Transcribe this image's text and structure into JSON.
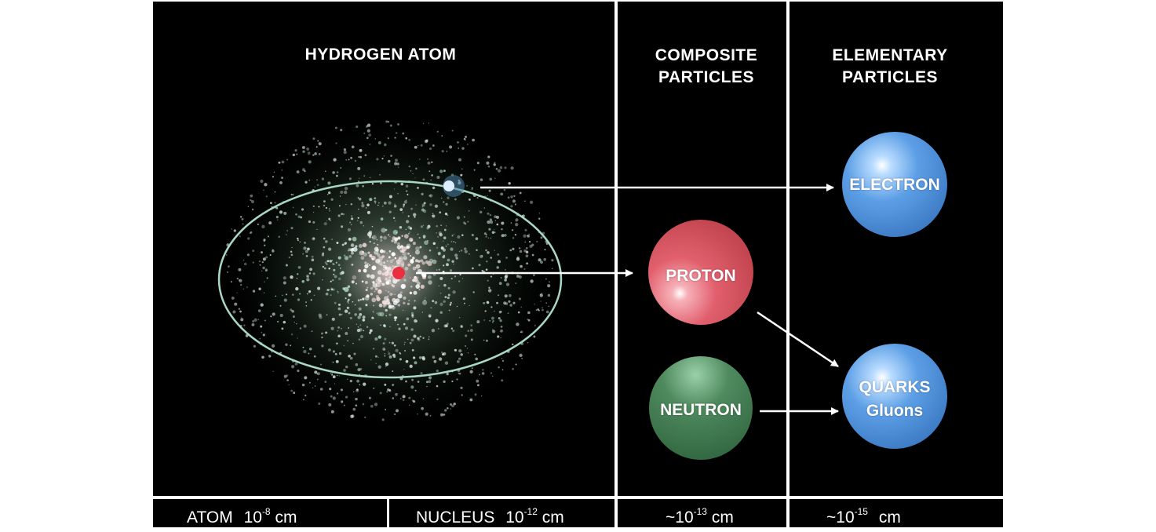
{
  "panels": {
    "hydrogen": {
      "title": "HYDROGEN ATOM"
    },
    "composite": {
      "title_line1": "COMPOSITE",
      "title_line2": "PARTICLES"
    },
    "elementary": {
      "title_line1": "ELEMENTARY",
      "title_line2": "PARTICLES"
    }
  },
  "particles": {
    "electron": {
      "label": "ELECTRON",
      "color": "#5aa0e8"
    },
    "proton": {
      "label": "PROTON",
      "color": "#e0606e"
    },
    "neutron": {
      "label": "NEUTRON",
      "color": "#4f8a5e"
    },
    "quarks": {
      "label": "QUARKS",
      "sublabel": "Gluons",
      "color": "#5aa0e8"
    }
  },
  "scales": {
    "atom": {
      "label": "ATOM",
      "mantissa": "10",
      "exponent": "-8",
      "unit": "cm"
    },
    "nucleus": {
      "label": "NUCLEUS",
      "mantissa": "10",
      "exponent": "-12",
      "unit": "cm"
    },
    "composite": {
      "prefix": "~10",
      "exponent": "-13",
      "unit": "cm"
    },
    "elementary": {
      "prefix": "~10",
      "exponent": "-15",
      "unit": "cm"
    }
  },
  "colors": {
    "background": "#000000",
    "divider": "#ffffff",
    "orbit": "#a8d8c4",
    "nucleus_dot": "#e83040",
    "electron_dot": "#5aa0e8"
  }
}
